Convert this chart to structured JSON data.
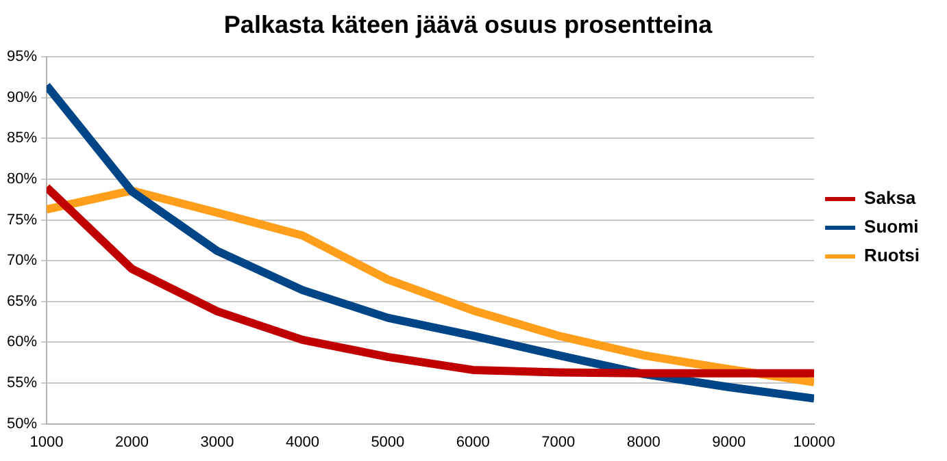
{
  "chart_data": {
    "type": "line",
    "title": "Palkasta käteen jäävä osuus prosentteina",
    "x": [
      1000,
      2000,
      3000,
      4000,
      5000,
      6000,
      7000,
      8000,
      9000,
      10000
    ],
    "series": [
      {
        "name": "Saksa",
        "color": "#c00000",
        "values": [
          79,
          69,
          63.8,
          60.3,
          58.2,
          56.6,
          56.3,
          56.2,
          56.2,
          56.2
        ]
      },
      {
        "name": "Suomi",
        "color": "#004586",
        "values": [
          91.5,
          78.5,
          71.2,
          66.4,
          63,
          60.8,
          58.4,
          56.1,
          54.5,
          53.1
        ]
      },
      {
        "name": "Ruotsi",
        "color": "#ff9e1a",
        "values": [
          76.3,
          78.6,
          75.9,
          73.1,
          67.7,
          63.9,
          60.8,
          58.4,
          56.7,
          55.1
        ]
      }
    ],
    "xlim": [
      1000,
      10000
    ],
    "xticks": [
      1000,
      2000,
      3000,
      4000,
      5000,
      6000,
      7000,
      8000,
      9000,
      10000
    ],
    "ylim": [
      50,
      95
    ],
    "yticks": [
      {
        "value": 50,
        "label": "50%"
      },
      {
        "value": 55,
        "label": "55%"
      },
      {
        "value": 60,
        "label": "60%"
      },
      {
        "value": 65,
        "label": "65%"
      },
      {
        "value": 70,
        "label": "70%"
      },
      {
        "value": 75,
        "label": "75%"
      },
      {
        "value": 80,
        "label": "80%"
      },
      {
        "value": 85,
        "label": "85%"
      },
      {
        "value": 90,
        "label": "90%"
      },
      {
        "value": 95,
        "label": "95%"
      }
    ],
    "grid": "y",
    "legend": "right",
    "marker": "none",
    "line_style": "solid"
  }
}
